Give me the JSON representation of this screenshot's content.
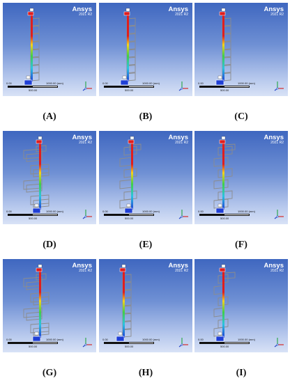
{
  "panels": [
    {
      "caption": "(A)",
      "brand": "Ansys",
      "version": "2021 R2",
      "scale_start": "0.00",
      "scale_end": "1000.00 (mm)",
      "scale_mid": "500.00"
    },
    {
      "caption": "(B)",
      "brand": "Ansys",
      "version": "2021 R2",
      "scale_start": "0.00",
      "scale_end": "1000.00 (mm)",
      "scale_mid": "500.00"
    },
    {
      "caption": "(C)",
      "brand": "Ansys",
      "version": "2021 R2",
      "scale_start": "0.00",
      "scale_end": "1000.00 (mm)",
      "scale_mid": "500.00"
    },
    {
      "caption": "(D)",
      "brand": "Ansys",
      "version": "2021 R2",
      "scale_start": "0.00",
      "scale_end": "1000.00 (mm)",
      "scale_mid": "500.00"
    },
    {
      "caption": "(E)",
      "brand": "Ansys",
      "version": "2021 R2",
      "scale_start": "0.00",
      "scale_end": "1000.00 (mm)",
      "scale_mid": "500.00"
    },
    {
      "caption": "(F)",
      "brand": "Ansys",
      "version": "2021 R2",
      "scale_start": "0.00",
      "scale_end": "1000.00 (mm)",
      "scale_mid": "500.00"
    },
    {
      "caption": "(G)",
      "brand": "Ansys",
      "version": "2021 R2",
      "scale_start": "0.00",
      "scale_end": "1000.00 (mm)",
      "scale_mid": "500.00"
    },
    {
      "caption": "(H)",
      "brand": "Ansys",
      "version": "2021 R2",
      "scale_start": "0.00",
      "scale_end": "1000.00 (mm)",
      "scale_mid": "500.00"
    },
    {
      "caption": "(I)",
      "brand": "Ansys",
      "version": "2021 R2",
      "scale_start": "0.00",
      "scale_end": "1000.00 (mm)",
      "scale_mid": "500.00"
    }
  ],
  "triad": {
    "x_color": "#d42a2a",
    "y_color": "#2fa84f",
    "z_color": "#2646c9"
  },
  "colors": {
    "background_top": "#3f67c0",
    "background_bottom": "#d8e2f6",
    "frame": "#8c8c8c",
    "gradient": [
      "#e01e1e",
      "#e01e1e",
      "#f5d21b",
      "#3fcf4a",
      "#2bc3e0",
      "#1f3fd6"
    ]
  }
}
